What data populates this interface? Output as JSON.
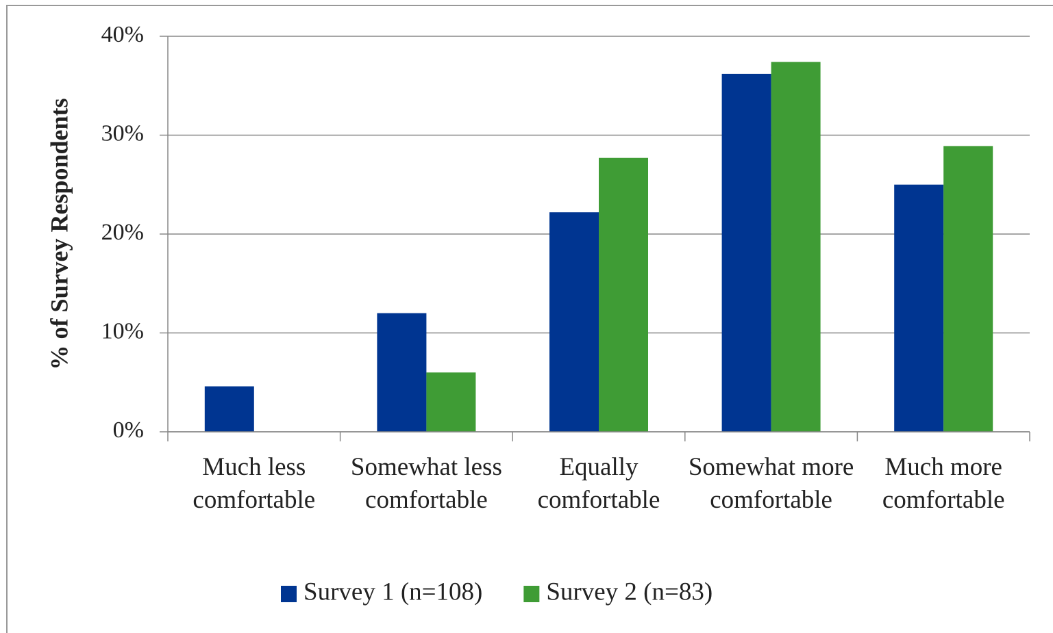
{
  "chart_data": {
    "type": "bar",
    "y_label": "% of Survey Respondents",
    "categories": [
      "Much less comfortable",
      "Somewhat less comfortable",
      "Equally comfortable",
      "Somewhat more comfortable",
      "Much more comfortable"
    ],
    "series": [
      {
        "name": "Survey 1 (n=108)",
        "color": "#003591",
        "values": [
          4.6,
          12.0,
          22.2,
          36.2,
          25.0
        ]
      },
      {
        "name": "Survey 2 (n=83)",
        "color": "#3f9c35",
        "values": [
          0,
          6.0,
          27.7,
          37.4,
          28.9
        ]
      }
    ],
    "ylim": [
      0,
      40
    ],
    "yticks": [
      {
        "value": 0,
        "label": "0%"
      },
      {
        "value": 10,
        "label": "10%"
      },
      {
        "value": 20,
        "label": "20%"
      },
      {
        "value": 30,
        "label": "30%"
      },
      {
        "value": 40,
        "label": "40%"
      }
    ],
    "grid": true,
    "legend": "bottom"
  }
}
